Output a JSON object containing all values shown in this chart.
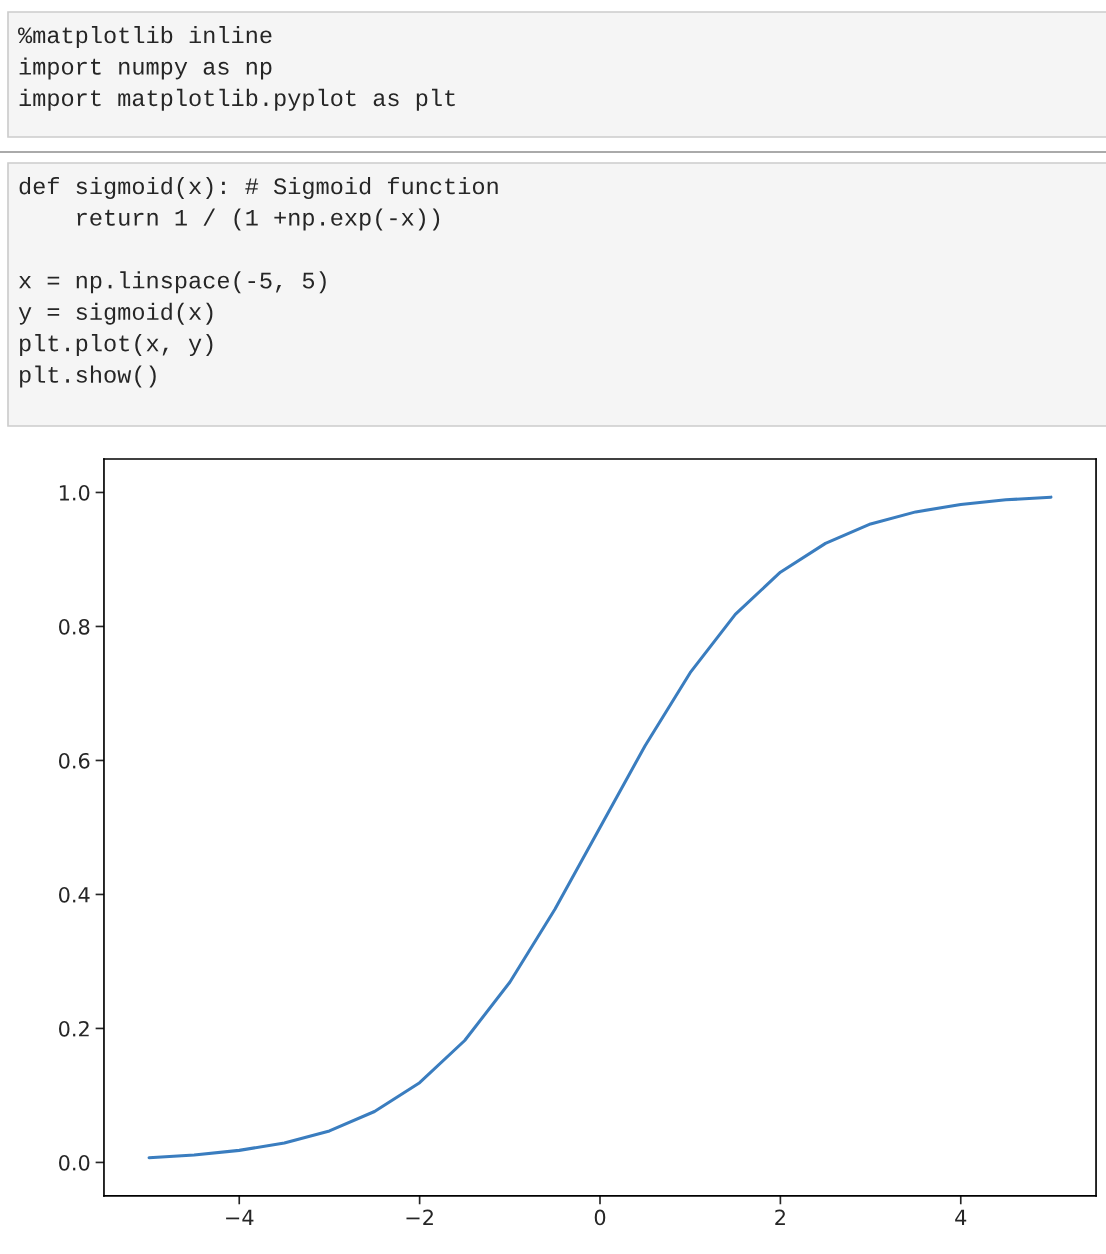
{
  "chart_data": {
    "type": "line",
    "annotations": [
      "%matplotlib inline\nimport numpy as np\nimport matplotlib.pyplot as plt",
      "def sigmoid(x): # Sigmoid function\n    return 1 / (1 +np.exp(-x))\n\nx = np.linspace(-5, 5)\ny = sigmoid(x)\nplt.plot(x, y)\nplt.show()"
    ],
    "series": [
      {
        "color": "#3a7dbf",
        "x": [
          -5,
          -4.5,
          -4,
          -3.5,
          -3,
          -2.5,
          -2,
          -1.5,
          -1,
          -0.5,
          0,
          0.5,
          1,
          1.5,
          2,
          2.5,
          3,
          3.5,
          4,
          4.5,
          5
        ],
        "values": [
          0.007,
          0.011,
          0.018,
          0.029,
          0.047,
          0.076,
          0.119,
          0.182,
          0.269,
          0.378,
          0.5,
          0.622,
          0.731,
          0.818,
          0.881,
          0.924,
          0.953,
          0.971,
          0.982,
          0.989,
          0.993
        ]
      }
    ],
    "xlim": [
      -5.5,
      5.5
    ],
    "ylim": [
      -0.05,
      1.05
    ],
    "xticks": [
      {
        "value": -4,
        "label": "−4"
      },
      {
        "value": -2,
        "label": "−2"
      },
      0,
      2,
      4
    ],
    "yticks": [
      {
        "value": 0,
        "label": "0.0"
      },
      {
        "value": 0.2,
        "label": "0.2"
      },
      {
        "value": 0.4,
        "label": "0.4"
      },
      {
        "value": 0.6,
        "label": "0.6"
      },
      {
        "value": 0.8,
        "label": "0.8"
      },
      {
        "value": 1,
        "label": "1.0"
      }
    ],
    "grid": false,
    "legend": false,
    "marker": "none",
    "line_style": "solid"
  }
}
